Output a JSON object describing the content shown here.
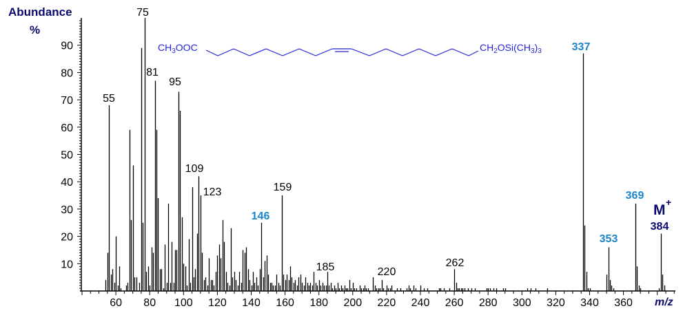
{
  "chart_data": {
    "type": "bar",
    "subtype": "mass-spectrum-stick",
    "title": "",
    "xlabel": "m/z",
    "ylabel": "Abundance %",
    "xlim": [
      40,
      390
    ],
    "ylim": [
      0,
      100
    ],
    "x_ticks": [
      60,
      80,
      100,
      120,
      140,
      160,
      180,
      200,
      220,
      240,
      260,
      280,
      300,
      320,
      340,
      360
    ],
    "y_ticks": [
      10,
      20,
      30,
      40,
      50,
      60,
      70,
      80,
      90
    ],
    "grid": false,
    "structure": {
      "left": "CH3OOC",
      "right": "CH2OSi(CH3)3",
      "double_bond": "cis"
    },
    "labeled_peaks": [
      {
        "mz": 55,
        "label": "55",
        "color": "#000000"
      },
      {
        "mz": 75,
        "label": "75",
        "color": "#000000"
      },
      {
        "mz": 81,
        "label": "81",
        "color": "#000000"
      },
      {
        "mz": 95,
        "label": "95",
        "color": "#000000"
      },
      {
        "mz": 109,
        "label": "109",
        "color": "#000000"
      },
      {
        "mz": 123,
        "label": "123",
        "color": "#000000"
      },
      {
        "mz": 146,
        "label": "146",
        "color": "#1a86c8"
      },
      {
        "mz": 159,
        "label": "159",
        "color": "#000000"
      },
      {
        "mz": 185,
        "label": "185",
        "color": "#000000"
      },
      {
        "mz": 220,
        "label": "220",
        "color": "#000000"
      },
      {
        "mz": 262,
        "label": "262",
        "color": "#000000"
      },
      {
        "mz": 337,
        "label": "337",
        "color": "#1a86c8"
      },
      {
        "mz": 353,
        "label": "353",
        "color": "#1a86c8"
      },
      {
        "mz": 369,
        "label": "369",
        "color": "#1a86c8"
      },
      {
        "mz": 384,
        "label": "384",
        "color": "#0a0a6e"
      }
    ],
    "molecular_ion_label": "M+",
    "peaks": [
      [
        54,
        4
      ],
      [
        55,
        14
      ],
      [
        56,
        68
      ],
      [
        57,
        6
      ],
      [
        58,
        8
      ],
      [
        59,
        3
      ],
      [
        60,
        20
      ],
      [
        61,
        2
      ],
      [
        62,
        9
      ],
      [
        63,
        1
      ],
      [
        66,
        2
      ],
      [
        67,
        3
      ],
      [
        68,
        59
      ],
      [
        69,
        26
      ],
      [
        70,
        46
      ],
      [
        71,
        5
      ],
      [
        72,
        5
      ],
      [
        74,
        3
      ],
      [
        75,
        89
      ],
      [
        76,
        25
      ],
      [
        77,
        100
      ],
      [
        78,
        7
      ],
      [
        79,
        9
      ],
      [
        80,
        2
      ],
      [
        81,
        16
      ],
      [
        82,
        14
      ],
      [
        83,
        77
      ],
      [
        84,
        59
      ],
      [
        85,
        34
      ],
      [
        86,
        8
      ],
      [
        87,
        8
      ],
      [
        88,
        1
      ],
      [
        89,
        17
      ],
      [
        90,
        3
      ],
      [
        91,
        32
      ],
      [
        92,
        3
      ],
      [
        93,
        18
      ],
      [
        94,
        3
      ],
      [
        95,
        15
      ],
      [
        96,
        15
      ],
      [
        97,
        73
      ],
      [
        98,
        66
      ],
      [
        99,
        27
      ],
      [
        100,
        10
      ],
      [
        101,
        9
      ],
      [
        102,
        2
      ],
      [
        103,
        19
      ],
      [
        104,
        3
      ],
      [
        105,
        38
      ],
      [
        106,
        5
      ],
      [
        107,
        8
      ],
      [
        108,
        21
      ],
      [
        109,
        42
      ],
      [
        110,
        35
      ],
      [
        111,
        14
      ],
      [
        112,
        4
      ],
      [
        113,
        5
      ],
      [
        114,
        2
      ],
      [
        115,
        12
      ],
      [
        116,
        4
      ],
      [
        117,
        4
      ],
      [
        118,
        2
      ],
      [
        119,
        7
      ],
      [
        120,
        13
      ],
      [
        121,
        17
      ],
      [
        122,
        12
      ],
      [
        123,
        26
      ],
      [
        124,
        18
      ],
      [
        125,
        7
      ],
      [
        126,
        3
      ],
      [
        127,
        2
      ],
      [
        128,
        23
      ],
      [
        129,
        5
      ],
      [
        130,
        7
      ],
      [
        131,
        4
      ],
      [
        132,
        2
      ],
      [
        133,
        7
      ],
      [
        134,
        3
      ],
      [
        135,
        15
      ],
      [
        136,
        14
      ],
      [
        137,
        16
      ],
      [
        138,
        8
      ],
      [
        139,
        4
      ],
      [
        140,
        2
      ],
      [
        141,
        7
      ],
      [
        142,
        3
      ],
      [
        143,
        5
      ],
      [
        144,
        2
      ],
      [
        145,
        8
      ],
      [
        146,
        25
      ],
      [
        147,
        5
      ],
      [
        148,
        11
      ],
      [
        149,
        13
      ],
      [
        150,
        6
      ],
      [
        151,
        3
      ],
      [
        152,
        3
      ],
      [
        153,
        2
      ],
      [
        154,
        2
      ],
      [
        155,
        6
      ],
      [
        156,
        3
      ],
      [
        157,
        2
      ],
      [
        158,
        35
      ],
      [
        159,
        6
      ],
      [
        160,
        4
      ],
      [
        161,
        6
      ],
      [
        162,
        4
      ],
      [
        163,
        9
      ],
      [
        164,
        5
      ],
      [
        165,
        3
      ],
      [
        166,
        4
      ],
      [
        167,
        2
      ],
      [
        168,
        5
      ],
      [
        169,
        6
      ],
      [
        170,
        3
      ],
      [
        171,
        2
      ],
      [
        172,
        5
      ],
      [
        173,
        3
      ],
      [
        174,
        2
      ],
      [
        175,
        3
      ],
      [
        176,
        2
      ],
      [
        177,
        7
      ],
      [
        178,
        3
      ],
      [
        179,
        2
      ],
      [
        180,
        4
      ],
      [
        181,
        2
      ],
      [
        182,
        3
      ],
      [
        183,
        2
      ],
      [
        184,
        2
      ],
      [
        185,
        7
      ],
      [
        186,
        2
      ],
      [
        187,
        3
      ],
      [
        188,
        1
      ],
      [
        189,
        2
      ],
      [
        190,
        1
      ],
      [
        191,
        3
      ],
      [
        192,
        1
      ],
      [
        193,
        2
      ],
      [
        194,
        1
      ],
      [
        195,
        2
      ],
      [
        196,
        1
      ],
      [
        197,
        1
      ],
      [
        198,
        4
      ],
      [
        199,
        1
      ],
      [
        200,
        3
      ],
      [
        201,
        1
      ],
      [
        202,
        1
      ],
      [
        204,
        2
      ],
      [
        205,
        1
      ],
      [
        206,
        1
      ],
      [
        207,
        2
      ],
      [
        208,
        1
      ],
      [
        209,
        1
      ],
      [
        212,
        5
      ],
      [
        213,
        2
      ],
      [
        214,
        1
      ],
      [
        215,
        1
      ],
      [
        216,
        1
      ],
      [
        217,
        4
      ],
      [
        218,
        1
      ],
      [
        220,
        2
      ],
      [
        221,
        1
      ],
      [
        222,
        1
      ],
      [
        223,
        2
      ],
      [
        226,
        1
      ],
      [
        228,
        1
      ],
      [
        232,
        1
      ],
      [
        233,
        2
      ],
      [
        234,
        1
      ],
      [
        236,
        2
      ],
      [
        237,
        1
      ],
      [
        240,
        2
      ],
      [
        242,
        1
      ],
      [
        244,
        1
      ],
      [
        251,
        1
      ],
      [
        252,
        1
      ],
      [
        254,
        1
      ],
      [
        257,
        1
      ],
      [
        260,
        8
      ],
      [
        261,
        3
      ],
      [
        262,
        1
      ],
      [
        263,
        1
      ],
      [
        264,
        1
      ],
      [
        265,
        1
      ],
      [
        266,
        1
      ],
      [
        268,
        1
      ],
      [
        270,
        1
      ],
      [
        272,
        1
      ],
      [
        279,
        1
      ],
      [
        280,
        1
      ],
      [
        281,
        1
      ],
      [
        283,
        1
      ],
      [
        285,
        1
      ],
      [
        289,
        1
      ],
      [
        290,
        1
      ],
      [
        303,
        1
      ],
      [
        305,
        1
      ],
      [
        308,
        1
      ],
      [
        315,
        1
      ],
      [
        336,
        87
      ],
      [
        337,
        24
      ],
      [
        338,
        7
      ],
      [
        339,
        1
      ],
      [
        340,
        1
      ],
      [
        350,
        6
      ],
      [
        351,
        16
      ],
      [
        352,
        4
      ],
      [
        353,
        2
      ],
      [
        354,
        1
      ],
      [
        367,
        32
      ],
      [
        368,
        9
      ],
      [
        369,
        2
      ],
      [
        370,
        1
      ],
      [
        381,
        1
      ],
      [
        382,
        21
      ],
      [
        383,
        6
      ],
      [
        384,
        2
      ]
    ]
  },
  "labels": {
    "yaxis_title_line1": "Abundance",
    "yaxis_title_line2": "%",
    "xaxis_title": "m/z",
    "molecular_ion": "M",
    "molecular_ion_sup": "+"
  },
  "colors": {
    "axis_title": "#0a0a6e",
    "highlight_label": "#1a86c8",
    "structure": "#2323d8",
    "stick": "#000000"
  }
}
